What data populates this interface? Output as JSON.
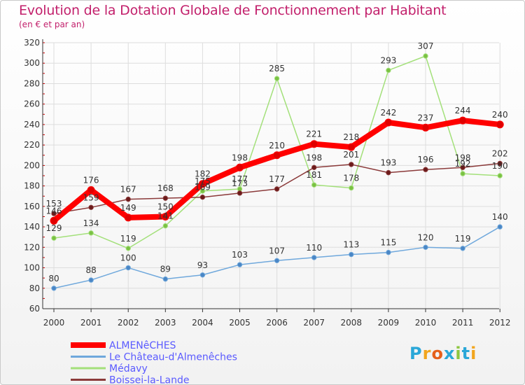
{
  "header": {
    "title": "Evolution de la Dotation Globale de Fonctionnement par Habitant",
    "subtitle": "(en € et par an)"
  },
  "logo": {
    "text": "Proxiti",
    "letters": [
      "P",
      "r",
      "o",
      "x",
      "i",
      "t",
      "i"
    ],
    "colors": [
      "#2aa7d8",
      "#f2a51d",
      "#e5601b",
      "#2aa7d8",
      "#8cc63f",
      "#2aa7d8",
      "#f2a51d"
    ]
  },
  "chart_data": {
    "type": "line",
    "title": "Evolution de la Dotation Globale de Fonctionnement par Habitant",
    "subtitle": "(en € et par an)",
    "xlabel": "",
    "ylabel": "",
    "x": [
      "2000",
      "2001",
      "2002",
      "2003",
      "2004",
      "2005",
      "2006",
      "2007",
      "2008",
      "2009",
      "2010",
      "2011",
      "2012"
    ],
    "ylim": [
      60,
      320
    ],
    "yticks": [
      60,
      80,
      100,
      120,
      140,
      160,
      180,
      200,
      220,
      240,
      260,
      280,
      300,
      320
    ],
    "grid": true,
    "legend_position": "bottom-left",
    "series": [
      {
        "name": "ALMENêCHES",
        "color": "#ff0000",
        "marker": "#e00000",
        "width": 8,
        "values": [
          146,
          176,
          149,
          150,
          182,
          198,
          210,
          221,
          218,
          242,
          237,
          244,
          240
        ],
        "labels": [
          "146",
          "176",
          "149",
          "150",
          "182",
          "198",
          "210",
          "221",
          "218",
          "242",
          "237",
          "244",
          "240"
        ]
      },
      {
        "name": "Le Château-d'Almenêches",
        "color": "#6fa8dc",
        "marker": "#4a86c5",
        "width": 1.5,
        "values": [
          80,
          88,
          100,
          89,
          93,
          103,
          107,
          110,
          113,
          115,
          120,
          119,
          140
        ],
        "labels": [
          "80",
          "88",
          "100",
          "89",
          "93",
          "103",
          "107",
          "110",
          "113",
          "115",
          "120",
          "119",
          "140"
        ]
      },
      {
        "name": "Médavy",
        "color": "#a3e07a",
        "marker": "#7ac143",
        "width": 1.5,
        "values": [
          129,
          134,
          119,
          141,
          175,
          177,
          285,
          181,
          178,
          293,
          307,
          192,
          190
        ],
        "labels": [
          "129",
          "134",
          "119",
          "141",
          "175",
          "177",
          "285",
          "181",
          "178",
          "293",
          "307",
          "192",
          "190"
        ]
      },
      {
        "name": "Boissei-la-Lande",
        "color": "#8b3a3a",
        "marker": "#6b1a1a",
        "width": 1.5,
        "values": [
          153,
          159,
          167,
          168,
          169,
          173,
          177,
          198,
          201,
          193,
          196,
          198,
          202
        ],
        "labels": [
          "153",
          "159",
          "167",
          "168",
          "169",
          "173",
          "177",
          "198",
          "201",
          "193",
          "196",
          "198",
          "202"
        ]
      }
    ]
  }
}
